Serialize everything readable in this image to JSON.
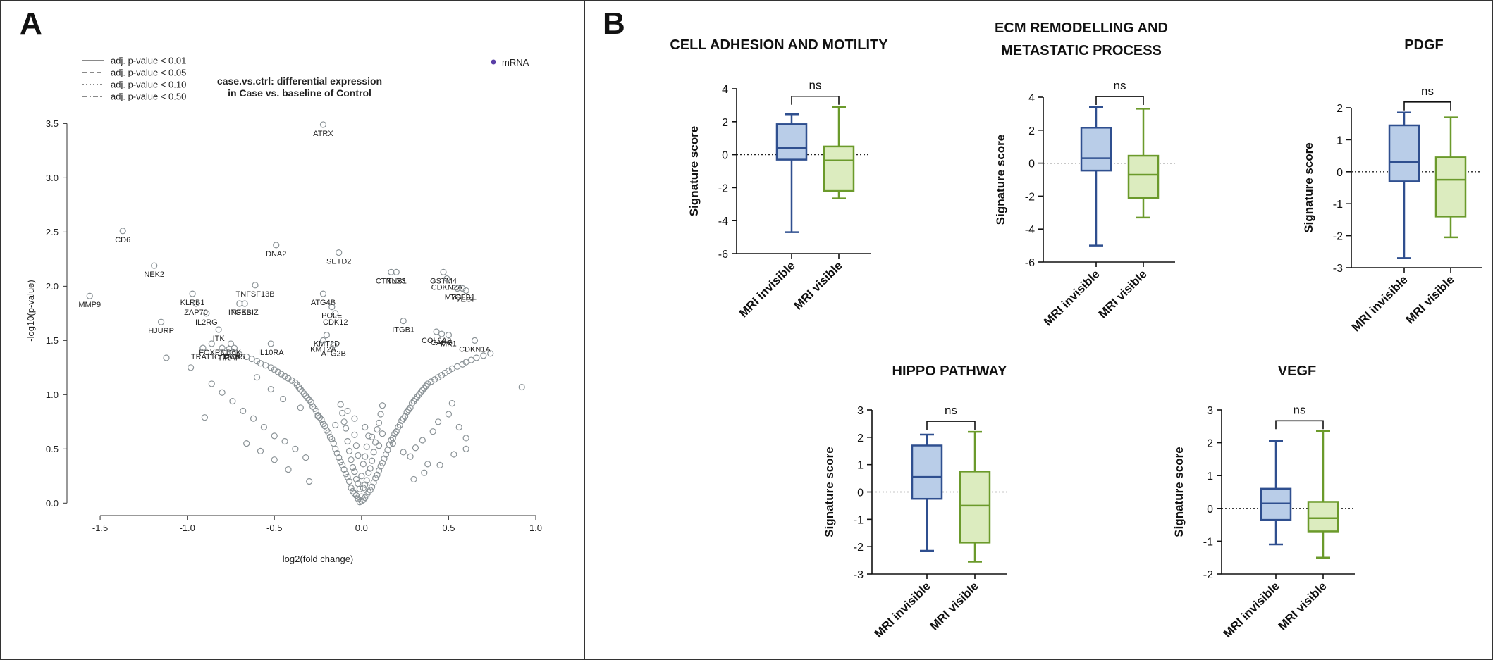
{
  "figure": {
    "panel_labels": [
      "A",
      "B"
    ]
  },
  "chart_data": [
    {
      "panel": "A",
      "type": "scatter",
      "title": "case.vs.ctrl: differential expression\nin Case vs. baseline of Control",
      "xlabel": "log2(fold change)",
      "ylabel": "-log10(p-value)",
      "xlim": [
        -1.65,
        1.0
      ],
      "ylim": [
        -0.05,
        3.6
      ],
      "xticks": [
        "-1.5",
        "-1.0",
        "-0.5",
        "0.0",
        "0.5",
        "1.0"
      ],
      "yticks": [
        "0.0",
        "0.5",
        "1.0",
        "1.5",
        "2.0",
        "2.5",
        "3.0",
        "3.5"
      ],
      "threshold_legend": [
        {
          "label": "adj. p-value < 0.01",
          "dash": "solid"
        },
        {
          "label": "adj. p-value < 0.05",
          "dash": "dashed"
        },
        {
          "label": "adj. p-value < 0.10",
          "dash": "dotted"
        },
        {
          "label": "adj. p-value < 0.50",
          "dash": "dashdot"
        }
      ],
      "legend": {
        "label": "mRNA",
        "color": "#5a3ea6",
        "position": "top-right"
      },
      "point_color": "#8a9296",
      "grid": false,
      "labeled_points": [
        {
          "gene": "ATRX",
          "x": -0.22,
          "y": 3.49
        },
        {
          "gene": "CD6",
          "x": -1.37,
          "y": 2.51
        },
        {
          "gene": "DNA2",
          "x": -0.49,
          "y": 2.38
        },
        {
          "gene": "SETD2",
          "x": -0.13,
          "y": 2.31
        },
        {
          "gene": "NEK2",
          "x": -1.19,
          "y": 2.19
        },
        {
          "gene": "CTNNB1",
          "x": 0.17,
          "y": 2.13
        },
        {
          "gene": "TLX3",
          "x": 0.2,
          "y": 2.13
        },
        {
          "gene": "GSTM4",
          "x": 0.47,
          "y": 2.13
        },
        {
          "gene": "CDKN2A",
          "x": 0.49,
          "y": 2.07
        },
        {
          "gene": "TNFSF13B",
          "x": -0.61,
          "y": 2.01
        },
        {
          "gene": "MYBL2",
          "x": 0.55,
          "y": 1.98
        },
        {
          "gene": "TGFB1",
          "x": 0.58,
          "y": 1.98
        },
        {
          "gene": "VEGF",
          "x": 0.6,
          "y": 1.96
        },
        {
          "gene": "MMP9",
          "x": -1.56,
          "y": 1.91
        },
        {
          "gene": "KLRB1",
          "x": -0.97,
          "y": 1.93
        },
        {
          "gene": "ATG4B",
          "x": -0.22,
          "y": 1.93
        },
        {
          "gene": "ZAP70",
          "x": -0.95,
          "y": 1.84
        },
        {
          "gene": "ITGB2",
          "x": -0.7,
          "y": 1.84
        },
        {
          "gene": "NFKBIZ",
          "x": -0.67,
          "y": 1.84
        },
        {
          "gene": "POLE",
          "x": -0.17,
          "y": 1.81
        },
        {
          "gene": "IL2RG",
          "x": -0.89,
          "y": 1.75
        },
        {
          "gene": "CDK12",
          "x": -0.15,
          "y": 1.75
        },
        {
          "gene": "ITGB1",
          "x": 0.24,
          "y": 1.68
        },
        {
          "gene": "HJURP",
          "x": -1.15,
          "y": 1.67
        },
        {
          "gene": "KMT2D",
          "x": -0.2,
          "y": 1.55
        },
        {
          "gene": "COL6A2",
          "x": 0.43,
          "y": 1.58
        },
        {
          "gene": "CAPG",
          "x": 0.46,
          "y": 1.56
        },
        {
          "gene": "MK1",
          "x": 0.5,
          "y": 1.55
        },
        {
          "gene": "ITK",
          "x": -0.82,
          "y": 1.6
        },
        {
          "gene": "KMT2A",
          "x": -0.22,
          "y": 1.5
        },
        {
          "gene": "CDKN1A",
          "x": 0.65,
          "y": 1.5
        },
        {
          "gene": "FOXP3",
          "x": -0.86,
          "y": 1.47
        },
        {
          "gene": "CD6K",
          "x": -0.75,
          "y": 1.47
        },
        {
          "gene": "IL10RA",
          "x": -0.52,
          "y": 1.47
        },
        {
          "gene": "ATG2B",
          "x": -0.16,
          "y": 1.46
        },
        {
          "gene": "TRAT1",
          "x": -0.91,
          "y": 1.43
        },
        {
          "gene": "CD2",
          "x": -0.8,
          "y": 1.43
        },
        {
          "gene": "CCR5",
          "x": -0.73,
          "y": 1.43
        },
        {
          "gene": "TIRAP",
          "x": -0.76,
          "y": 1.42
        }
      ],
      "unlabeled_points": [
        [
          0.0,
          0.02
        ],
        [
          0.01,
          0.03
        ],
        [
          -0.01,
          0.01
        ],
        [
          0.02,
          0.05
        ],
        [
          -0.02,
          0.04
        ],
        [
          0.03,
          0.08
        ],
        [
          -0.03,
          0.07
        ],
        [
          0.0,
          0.06
        ],
        [
          0.04,
          0.1
        ],
        [
          -0.04,
          0.09
        ],
        [
          0.05,
          0.12
        ],
        [
          -0.05,
          0.11
        ],
        [
          0.01,
          0.14
        ],
        [
          -0.01,
          0.13
        ],
        [
          0.06,
          0.15
        ],
        [
          -0.06,
          0.14
        ],
        [
          0.02,
          0.17
        ],
        [
          -0.02,
          0.18
        ],
        [
          0.07,
          0.19
        ],
        [
          -0.07,
          0.2
        ],
        [
          0.03,
          0.21
        ],
        [
          -0.03,
          0.22
        ],
        [
          0.08,
          0.23
        ],
        [
          -0.08,
          0.24
        ],
        [
          0.0,
          0.25
        ],
        [
          0.09,
          0.26
        ],
        [
          -0.09,
          0.27
        ],
        [
          0.04,
          0.28
        ],
        [
          -0.04,
          0.29
        ],
        [
          0.1,
          0.3
        ],
        [
          -0.1,
          0.31
        ],
        [
          0.05,
          0.32
        ],
        [
          -0.05,
          0.33
        ],
        [
          0.11,
          0.34
        ],
        [
          -0.11,
          0.35
        ],
        [
          0.01,
          0.36
        ],
        [
          0.12,
          0.37
        ],
        [
          -0.12,
          0.38
        ],
        [
          0.06,
          0.39
        ],
        [
          -0.06,
          0.4
        ],
        [
          0.13,
          0.41
        ],
        [
          -0.13,
          0.42
        ],
        [
          0.02,
          0.43
        ],
        [
          -0.02,
          0.44
        ],
        [
          0.14,
          0.45
        ],
        [
          -0.14,
          0.46
        ],
        [
          0.07,
          0.47
        ],
        [
          -0.07,
          0.48
        ],
        [
          0.15,
          0.49
        ],
        [
          -0.15,
          0.5
        ],
        [
          0.03,
          0.52
        ],
        [
          -0.03,
          0.53
        ],
        [
          0.16,
          0.54
        ],
        [
          -0.16,
          0.55
        ],
        [
          0.08,
          0.56
        ],
        [
          -0.08,
          0.57
        ],
        [
          0.17,
          0.58
        ],
        [
          -0.17,
          0.59
        ],
        [
          0.18,
          0.6
        ],
        [
          -0.18,
          0.61
        ],
        [
          0.04,
          0.62
        ],
        [
          -0.04,
          0.63
        ],
        [
          0.19,
          0.64
        ],
        [
          -0.19,
          0.65
        ],
        [
          0.2,
          0.66
        ],
        [
          -0.2,
          0.67
        ],
        [
          0.09,
          0.68
        ],
        [
          -0.09,
          0.69
        ],
        [
          0.21,
          0.7
        ],
        [
          -0.21,
          0.71
        ],
        [
          0.22,
          0.72
        ],
        [
          -0.22,
          0.73
        ],
        [
          0.1,
          0.74
        ],
        [
          -0.1,
          0.75
        ],
        [
          0.23,
          0.76
        ],
        [
          -0.23,
          0.77
        ],
        [
          0.24,
          0.78
        ],
        [
          -0.24,
          0.79
        ],
        [
          0.25,
          0.8
        ],
        [
          -0.25,
          0.81
        ],
        [
          0.11,
          0.82
        ],
        [
          -0.11,
          0.83
        ],
        [
          0.26,
          0.84
        ],
        [
          -0.26,
          0.85
        ],
        [
          0.27,
          0.86
        ],
        [
          -0.27,
          0.87
        ],
        [
          0.28,
          0.88
        ],
        [
          -0.28,
          0.89
        ],
        [
          0.12,
          0.9
        ],
        [
          -0.12,
          0.91
        ],
        [
          0.29,
          0.92
        ],
        [
          -0.29,
          0.93
        ],
        [
          0.3,
          0.94
        ],
        [
          -0.3,
          0.95
        ],
        [
          0.31,
          0.96
        ],
        [
          -0.31,
          0.97
        ],
        [
          0.32,
          0.98
        ],
        [
          -0.32,
          0.99
        ],
        [
          0.33,
          1.0
        ],
        [
          -0.33,
          1.01
        ],
        [
          0.34,
          1.02
        ],
        [
          -0.34,
          1.03
        ],
        [
          0.35,
          1.04
        ],
        [
          -0.35,
          1.05
        ],
        [
          0.36,
          1.06
        ],
        [
          -0.36,
          1.07
        ],
        [
          0.37,
          1.08
        ],
        [
          -0.37,
          1.09
        ],
        [
          0.38,
          1.1
        ],
        [
          -0.38,
          1.11
        ],
        [
          0.4,
          1.12
        ],
        [
          -0.4,
          1.13
        ],
        [
          0.42,
          1.14
        ],
        [
          -0.42,
          1.15
        ],
        [
          0.44,
          1.16
        ],
        [
          -0.44,
          1.17
        ],
        [
          0.46,
          1.18
        ],
        [
          -0.46,
          1.19
        ],
        [
          0.48,
          1.2
        ],
        [
          -0.48,
          1.21
        ],
        [
          0.5,
          1.22
        ],
        [
          -0.5,
          1.23
        ],
        [
          0.52,
          1.24
        ],
        [
          -0.52,
          1.25
        ],
        [
          0.55,
          1.26
        ],
        [
          -0.55,
          1.27
        ],
        [
          0.58,
          1.28
        ],
        [
          -0.58,
          1.29
        ],
        [
          0.6,
          1.3
        ],
        [
          -0.6,
          1.31
        ],
        [
          0.63,
          1.32
        ],
        [
          -0.63,
          1.33
        ],
        [
          0.66,
          1.34
        ],
        [
          -0.66,
          1.35
        ],
        [
          0.7,
          1.36
        ],
        [
          -0.7,
          1.37
        ],
        [
          0.74,
          1.38
        ],
        [
          -0.74,
          1.39
        ],
        [
          0.92,
          1.07
        ],
        [
          -0.9,
          0.79
        ],
        [
          -1.12,
          1.34
        ],
        [
          -0.98,
          1.25
        ],
        [
          0.28,
          0.43
        ],
        [
          0.31,
          0.51
        ],
        [
          0.35,
          0.58
        ],
        [
          0.41,
          0.66
        ],
        [
          0.44,
          0.75
        ],
        [
          0.5,
          0.82
        ],
        [
          0.52,
          0.92
        ],
        [
          0.56,
          0.7
        ],
        [
          0.6,
          0.6
        ],
        [
          0.38,
          0.36
        ],
        [
          -0.32,
          0.42
        ],
        [
          -0.38,
          0.5
        ],
        [
          -0.44,
          0.57
        ],
        [
          -0.5,
          0.62
        ],
        [
          -0.56,
          0.7
        ],
        [
          -0.62,
          0.78
        ],
        [
          -0.68,
          0.85
        ],
        [
          -0.74,
          0.94
        ],
        [
          -0.8,
          1.02
        ],
        [
          -0.86,
          1.1
        ],
        [
          -0.42,
          0.31
        ],
        [
          -0.5,
          0.4
        ],
        [
          -0.58,
          0.48
        ],
        [
          -0.66,
          0.55
        ],
        [
          -0.3,
          0.2
        ],
        [
          0.3,
          0.22
        ],
        [
          0.36,
          0.28
        ],
        [
          0.45,
          0.35
        ],
        [
          0.53,
          0.45
        ],
        [
          0.6,
          0.5
        ],
        [
          -0.6,
          1.16
        ],
        [
          -0.52,
          1.05
        ],
        [
          -0.45,
          0.96
        ],
        [
          -0.35,
          0.88
        ],
        [
          -0.25,
          0.8
        ],
        [
          -0.15,
          0.72
        ],
        [
          0.12,
          0.64
        ],
        [
          0.18,
          0.55
        ],
        [
          0.24,
          0.47
        ],
        [
          -0.08,
          0.85
        ],
        [
          -0.04,
          0.78
        ],
        [
          0.02,
          0.7
        ],
        [
          0.06,
          0.61
        ],
        [
          0.1,
          0.53
        ]
      ]
    },
    {
      "panel": "B",
      "type": "box",
      "title": "CELL ADHESION AND MOTILITY",
      "ylabel": "Signature score",
      "ylim": [
        -6,
        4
      ],
      "yticks": [
        "-6",
        "-4",
        "-2",
        "0",
        "2",
        "4"
      ],
      "categories": [
        "MRI invisible",
        "MRI visible"
      ],
      "significance": "ns",
      "reference_line": 0,
      "series": [
        {
          "min": -4.7,
          "q1": -0.3,
          "median": 0.4,
          "q3": 1.85,
          "max": 2.45,
          "color": "#2f4f8f",
          "fill": "#b9cde8"
        },
        {
          "min": -2.65,
          "q1": -2.2,
          "median": -0.35,
          "q3": 0.5,
          "max": 2.9,
          "color": "#6b9a2b",
          "fill": "#dcecbf"
        }
      ]
    },
    {
      "panel": "B",
      "type": "box",
      "title": "ECM REMODELLING AND\nMETASTATIC PROCESS",
      "ylabel": "Signature score",
      "ylim": [
        -6,
        4
      ],
      "yticks": [
        "-6",
        "-4",
        "-2",
        "0",
        "2",
        "4"
      ],
      "categories": [
        "MRI invisible",
        "MRI visible"
      ],
      "significance": "ns",
      "reference_line": 0,
      "series": [
        {
          "min": -5.0,
          "q1": -0.45,
          "median": 0.3,
          "q3": 2.15,
          "max": 3.4,
          "color": "#2f4f8f",
          "fill": "#b9cde8"
        },
        {
          "min": -3.3,
          "q1": -2.1,
          "median": -0.7,
          "q3": 0.45,
          "max": 3.3,
          "color": "#6b9a2b",
          "fill": "#dcecbf"
        }
      ]
    },
    {
      "panel": "B",
      "type": "box",
      "title": "PDGF",
      "ylabel": "Signature score",
      "ylim": [
        -3,
        2
      ],
      "yticks": [
        "-3",
        "-2",
        "-1",
        "0",
        "1",
        "2"
      ],
      "categories": [
        "MRI invisible",
        "MRI visible"
      ],
      "significance": "ns",
      "reference_line": 0,
      "series": [
        {
          "min": -2.7,
          "q1": -0.3,
          "median": 0.3,
          "q3": 1.45,
          "max": 1.85,
          "color": "#2f4f8f",
          "fill": "#b9cde8"
        },
        {
          "min": -2.05,
          "q1": -1.4,
          "median": -0.25,
          "q3": 0.45,
          "max": 1.7,
          "color": "#6b9a2b",
          "fill": "#dcecbf"
        }
      ]
    },
    {
      "panel": "B",
      "type": "box",
      "title": "HIPPO PATHWAY",
      "ylabel": "Signature score",
      "ylim": [
        -3,
        3
      ],
      "yticks": [
        "-3",
        "-2",
        "-1",
        "0",
        "1",
        "2",
        "3"
      ],
      "categories": [
        "MRI invisible",
        "MRI visible"
      ],
      "significance": "ns",
      "reference_line": 0,
      "series": [
        {
          "min": -2.15,
          "q1": -0.25,
          "median": 0.55,
          "q3": 1.7,
          "max": 2.1,
          "color": "#2f4f8f",
          "fill": "#b9cde8"
        },
        {
          "min": -2.55,
          "q1": -1.85,
          "median": -0.5,
          "q3": 0.75,
          "max": 2.2,
          "color": "#6b9a2b",
          "fill": "#dcecbf"
        }
      ]
    },
    {
      "panel": "B",
      "type": "box",
      "title": "VEGF",
      "ylabel": "Signature score",
      "ylim": [
        -2,
        3
      ],
      "yticks": [
        "-2",
        "-1",
        "0",
        "1",
        "2",
        "3"
      ],
      "categories": [
        "MRI invisible",
        "MRI visible"
      ],
      "significance": "ns",
      "reference_line": 0,
      "series": [
        {
          "min": -1.1,
          "q1": -0.35,
          "median": 0.15,
          "q3": 0.6,
          "max": 2.05,
          "color": "#2f4f8f",
          "fill": "#b9cde8"
        },
        {
          "min": -1.5,
          "q1": -0.7,
          "median": -0.3,
          "q3": 0.2,
          "max": 2.35,
          "color": "#6b9a2b",
          "fill": "#dcecbf"
        }
      ]
    }
  ]
}
